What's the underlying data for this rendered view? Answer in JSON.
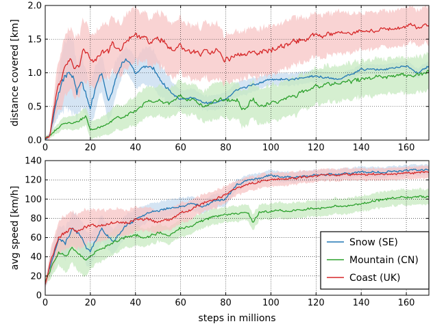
{
  "chart_data": [
    {
      "type": "line",
      "ylabel": "distance covered [km]",
      "xlabel": "",
      "xlim": [
        0,
        170
      ],
      "ylim": [
        0.0,
        2.0
      ],
      "xticks": [
        "0",
        "20",
        "40",
        "60",
        "80",
        "100",
        "120",
        "140",
        "160"
      ],
      "yticks": [
        "0.0",
        "0.5",
        "1.0",
        "1.5",
        "2.0"
      ],
      "grid": true,
      "bands": true,
      "series": [
        {
          "color": "#1f77b4",
          "band_color": "#c6dbef",
          "x": [
            0,
            2,
            5,
            8,
            10,
            12,
            14,
            16,
            18,
            20,
            22,
            25,
            28,
            31,
            34,
            36,
            40,
            44,
            48,
            52,
            56,
            60,
            66,
            70,
            75,
            80,
            85,
            90,
            95,
            100,
            110,
            120,
            130,
            140,
            150,
            160,
            165,
            170
          ],
          "y": [
            0.02,
            0.06,
            0.6,
            0.9,
            1.0,
            1.0,
            0.7,
            0.95,
            0.7,
            0.45,
            0.75,
            1.0,
            0.55,
            0.9,
            1.15,
            1.2,
            1.0,
            1.1,
            1.05,
            0.85,
            0.7,
            0.6,
            0.62,
            0.55,
            0.55,
            0.6,
            0.75,
            0.8,
            0.85,
            0.9,
            0.9,
            0.95,
            0.9,
            1.05,
            1.05,
            1.1,
            1.0,
            1.1
          ],
          "spread": [
            0.02,
            0.05,
            0.3,
            0.5,
            0.6,
            0.6,
            0.45,
            0.45,
            0.4,
            0.35,
            0.35,
            0.3,
            0.35,
            0.3,
            0.2,
            0.2,
            0.25,
            0.3,
            0.3,
            0.25,
            0.2,
            0.15,
            0.15,
            0.12,
            0.12,
            0.12,
            0.12,
            0.12,
            0.1,
            0.1,
            0.1,
            0.1,
            0.08,
            0.08,
            0.08,
            0.08,
            0.08,
            0.08
          ]
        },
        {
          "color": "#2ca02c",
          "band_color": "#c7e9c0",
          "x": [
            0,
            3,
            8,
            13,
            18,
            20,
            25,
            30,
            35,
            40,
            45,
            50,
            55,
            60,
            65,
            70,
            75,
            80,
            85,
            88,
            92,
            95,
            100,
            110,
            120,
            130,
            140,
            150,
            160,
            170
          ],
          "y": [
            0.02,
            0.1,
            0.25,
            0.25,
            0.35,
            0.15,
            0.2,
            0.3,
            0.35,
            0.45,
            0.55,
            0.6,
            0.55,
            0.65,
            0.6,
            0.5,
            0.6,
            0.6,
            0.6,
            0.45,
            0.6,
            0.5,
            0.55,
            0.65,
            0.8,
            0.85,
            0.9,
            0.95,
            0.95,
            1.0
          ],
          "spread": [
            0.02,
            0.05,
            0.1,
            0.12,
            0.15,
            0.15,
            0.15,
            0.2,
            0.2,
            0.25,
            0.25,
            0.25,
            0.25,
            0.25,
            0.25,
            0.25,
            0.3,
            0.3,
            0.3,
            0.3,
            0.3,
            0.3,
            0.3,
            0.3,
            0.3,
            0.3,
            0.3,
            0.3,
            0.3,
            0.3
          ]
        },
        {
          "color": "#d62728",
          "band_color": "#f7c4c4",
          "x": [
            0,
            2,
            5,
            8,
            11,
            13,
            15,
            17,
            20,
            22,
            25,
            28,
            30,
            33,
            36,
            40,
            44,
            48,
            52,
            56,
            60,
            64,
            68,
            72,
            76,
            80,
            85,
            90,
            95,
            100,
            110,
            120,
            130,
            140,
            150,
            160,
            170
          ],
          "y": [
            0.02,
            0.06,
            0.7,
            1.0,
            1.2,
            1.0,
            1.1,
            1.3,
            1.2,
            1.15,
            1.3,
            1.3,
            1.45,
            1.35,
            1.5,
            1.55,
            1.5,
            1.45,
            1.5,
            1.35,
            1.4,
            1.3,
            1.3,
            1.3,
            1.35,
            1.2,
            1.25,
            1.3,
            1.3,
            1.35,
            1.45,
            1.55,
            1.6,
            1.6,
            1.65,
            1.68,
            1.7
          ],
          "spread": [
            0.02,
            0.05,
            0.35,
            0.5,
            0.5,
            0.5,
            0.5,
            0.5,
            0.45,
            0.45,
            0.45,
            0.45,
            0.45,
            0.45,
            0.45,
            0.45,
            0.4,
            0.4,
            0.45,
            0.45,
            0.45,
            0.45,
            0.45,
            0.45,
            0.45,
            0.4,
            0.4,
            0.4,
            0.4,
            0.4,
            0.4,
            0.35,
            0.35,
            0.3,
            0.3,
            0.3,
            0.3
          ]
        }
      ]
    },
    {
      "type": "line",
      "ylabel": "avg speed [km/h]",
      "xlabel": "steps in millions",
      "xlim": [
        0,
        170
      ],
      "ylim": [
        0,
        140
      ],
      "xticks": [
        "0",
        "20",
        "40",
        "60",
        "80",
        "100",
        "120",
        "140",
        "160"
      ],
      "yticks": [
        "0",
        "20",
        "40",
        "60",
        "80",
        "100",
        "120",
        "140"
      ],
      "grid": true,
      "bands": true,
      "legend": {
        "placement": "lower-right",
        "entries": [
          {
            "label": "Snow (SE)",
            "color": "#1f77b4"
          },
          {
            "label": "Mountain (CN)",
            "color": "#2ca02c"
          },
          {
            "label": "Coast (UK)",
            "color": "#d62728"
          }
        ]
      },
      "series": [
        {
          "color": "#1f77b4",
          "band_color": "#c6dbef",
          "x": [
            0,
            3,
            6,
            9,
            12,
            15,
            18,
            20,
            25,
            30,
            35,
            40,
            45,
            50,
            55,
            60,
            65,
            70,
            75,
            80,
            85,
            90,
            95,
            100,
            110,
            120,
            130,
            140,
            150,
            160,
            170
          ],
          "y": [
            12,
            35,
            60,
            55,
            70,
            65,
            50,
            45,
            70,
            55,
            70,
            80,
            85,
            88,
            90,
            92,
            95,
            92,
            98,
            100,
            115,
            120,
            122,
            125,
            122,
            125,
            126,
            128,
            128,
            130,
            131
          ],
          "spread": [
            4,
            15,
            15,
            18,
            18,
            20,
            20,
            18,
            15,
            15,
            12,
            12,
            10,
            10,
            10,
            10,
            8,
            8,
            8,
            8,
            6,
            6,
            6,
            6,
            6,
            6,
            6,
            6,
            6,
            6,
            6
          ]
        },
        {
          "color": "#2ca02c",
          "band_color": "#c7e9c0",
          "x": [
            0,
            3,
            6,
            9,
            12,
            15,
            18,
            20,
            25,
            30,
            35,
            40,
            45,
            50,
            55,
            60,
            65,
            70,
            75,
            80,
            85,
            90,
            92,
            95,
            100,
            110,
            120,
            130,
            140,
            150,
            160,
            170
          ],
          "y": [
            14,
            30,
            45,
            40,
            50,
            42,
            35,
            40,
            50,
            55,
            60,
            62,
            60,
            65,
            62,
            70,
            72,
            78,
            82,
            84,
            85,
            86,
            75,
            86,
            88,
            88,
            90,
            93,
            95,
            100,
            102,
            103
          ],
          "spread": [
            4,
            12,
            15,
            18,
            18,
            20,
            20,
            15,
            15,
            14,
            12,
            12,
            10,
            10,
            10,
            10,
            9,
            9,
            9,
            9,
            9,
            9,
            9,
            9,
            9,
            9,
            9,
            9,
            9,
            9,
            9,
            9
          ]
        },
        {
          "color": "#d62728",
          "band_color": "#f7c4c4",
          "x": [
            0,
            3,
            6,
            9,
            12,
            15,
            18,
            20,
            25,
            30,
            35,
            40,
            45,
            50,
            55,
            60,
            65,
            70,
            75,
            80,
            85,
            90,
            95,
            100,
            110,
            120,
            130,
            140,
            150,
            160,
            170
          ],
          "y": [
            12,
            40,
            60,
            65,
            70,
            68,
            70,
            72,
            72,
            75,
            75,
            78,
            80,
            75,
            78,
            85,
            90,
            95,
            100,
            105,
            112,
            115,
            118,
            120,
            122,
            124,
            125,
            126,
            126,
            127,
            128
          ],
          "spread": [
            4,
            15,
            18,
            20,
            20,
            20,
            20,
            18,
            18,
            16,
            15,
            14,
            14,
            13,
            12,
            12,
            11,
            10,
            10,
            10,
            8,
            8,
            8,
            8,
            7,
            7,
            7,
            7,
            7,
            7,
            7
          ]
        }
      ]
    }
  ]
}
